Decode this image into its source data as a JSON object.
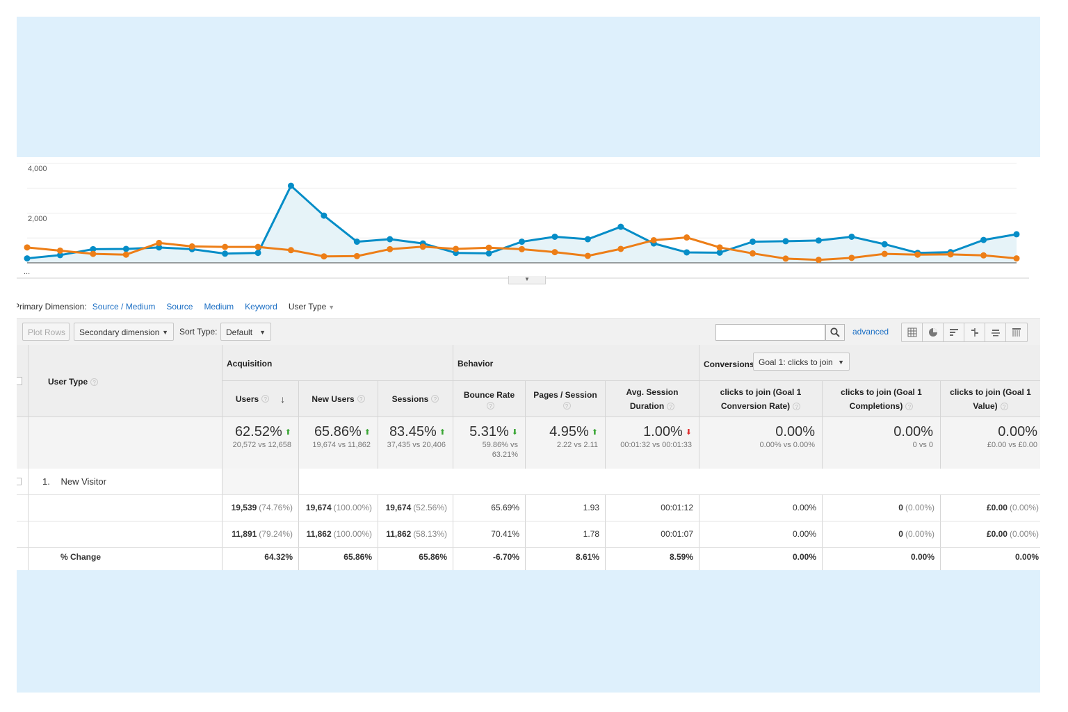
{
  "colors": {
    "series1": "#058dc7",
    "series2": "#ed7e17",
    "link": "#1a6ec4",
    "panel": "#def0fc",
    "up_arrow": "#3aa635",
    "down_arrow_bad": "#e03131"
  },
  "chart_data": {
    "type": "line",
    "y_ticks": [
      "4,000",
      "2,000"
    ],
    "ylim": [
      0,
      4000
    ],
    "x_tick_label": "...",
    "grid": true,
    "series": [
      {
        "color": "#058dc7",
        "values": [
          180,
          310,
          550,
          560,
          620,
          550,
          370,
          400,
          3100,
          1900,
          850,
          950,
          780,
          400,
          380,
          850,
          1050,
          950,
          1450,
          780,
          420,
          410,
          850,
          870,
          900,
          1050,
          750,
          400,
          430,
          920,
          1150
        ]
      },
      {
        "color": "#ed7e17",
        "values": [
          620,
          490,
          360,
          330,
          800,
          660,
          640,
          640,
          510,
          260,
          270,
          550,
          650,
          560,
          610,
          550,
          430,
          280,
          560,
          910,
          1020,
          620,
          380,
          170,
          120,
          200,
          360,
          330,
          340,
          300,
          180
        ]
      }
    ]
  },
  "primary_dimension": {
    "label": "Primary Dimension:",
    "options": [
      "Source / Medium",
      "Source",
      "Medium",
      "Keyword",
      "User Type"
    ],
    "selected": "User Type"
  },
  "toolbar": {
    "plot_rows": "Plot Rows",
    "secondary_dimension": "Secondary dimension",
    "sort_type_label": "Sort Type:",
    "sort_type_value": "Default",
    "search_placeholder": "",
    "advanced": "advanced",
    "view_icons": [
      "table-view-icon",
      "pie-view-icon",
      "performance-view-icon",
      "comparison-view-icon",
      "term-cloud-view-icon",
      "pivot-view-icon"
    ]
  },
  "table": {
    "dimension_header": "User Type",
    "groups": {
      "acquisition": "Acquisition",
      "behavior": "Behavior",
      "conversions": "Conversions",
      "goal_select": "Goal 1: clicks to join"
    },
    "columns": [
      {
        "l1": "Users",
        "l2": ""
      },
      {
        "l1": "New Users",
        "l2": ""
      },
      {
        "l1": "Sessions",
        "l2": ""
      },
      {
        "l1": "Bounce Rate",
        "l2": ""
      },
      {
        "l1": "Pages / Session",
        "l2": ""
      },
      {
        "l1": "Avg. Session",
        "l2": "Duration"
      },
      {
        "l1": "clicks to join (Goal 1",
        "l2": "Conversion Rate)"
      },
      {
        "l1": "clicks to join (Goal 1",
        "l2": "Completions)"
      },
      {
        "l1": "clicks to join (Goal 1",
        "l2": "Value)"
      }
    ],
    "totals": [
      {
        "big": "62.52%",
        "sub1": "20,572 vs 12,658",
        "sub2": "",
        "arrow": "up"
      },
      {
        "big": "65.86%",
        "sub1": "19,674 vs 11,862",
        "sub2": "",
        "arrow": "up"
      },
      {
        "big": "83.45%",
        "sub1": "37,435 vs 20,406",
        "sub2": "",
        "arrow": "up"
      },
      {
        "big": "5.31%",
        "sub1": "59.86% vs",
        "sub2": "63.21%",
        "arrow": "down"
      },
      {
        "big": "4.95%",
        "sub1": "2.22 vs 2.11",
        "sub2": "",
        "arrow": "up"
      },
      {
        "big": "1.00%",
        "sub1": "00:01:32 vs 00:01:33",
        "sub2": "",
        "arrow": "red"
      },
      {
        "big": "0.00%",
        "sub1": "0.00% vs 0.00%",
        "sub2": "",
        "arrow": ""
      },
      {
        "big": "0.00%",
        "sub1": "0 vs 0",
        "sub2": "",
        "arrow": ""
      },
      {
        "big": "0.00%",
        "sub1": "£0.00 vs £0.00",
        "sub2": "",
        "arrow": ""
      }
    ],
    "row": {
      "index": "1.",
      "label": "New Visitor"
    },
    "range_rows": [
      [
        {
          "v": "19,539",
          "p": "(74.76%)"
        },
        {
          "v": "19,674",
          "p": "(100.00%)"
        },
        {
          "v": "19,674",
          "p": "(52.56%)"
        },
        {
          "v": "65.69%",
          "p": ""
        },
        {
          "v": "1.93",
          "p": ""
        },
        {
          "v": "00:01:12",
          "p": ""
        },
        {
          "v": "0.00%",
          "p": ""
        },
        {
          "v": "0",
          "p": "(0.00%)"
        },
        {
          "v": "£0.00",
          "p": "(0.00%)"
        }
      ],
      [
        {
          "v": "11,891",
          "p": "(79.24%)"
        },
        {
          "v": "11,862",
          "p": "(100.00%)"
        },
        {
          "v": "11,862",
          "p": "(58.13%)"
        },
        {
          "v": "70.41%",
          "p": ""
        },
        {
          "v": "1.78",
          "p": ""
        },
        {
          "v": "00:01:07",
          "p": ""
        },
        {
          "v": "0.00%",
          "p": ""
        },
        {
          "v": "0",
          "p": "(0.00%)"
        },
        {
          "v": "£0.00",
          "p": "(0.00%)"
        }
      ]
    ],
    "change_label": "% Change",
    "change_row": [
      "64.32%",
      "65.86%",
      "65.86%",
      "-6.70%",
      "8.61%",
      "8.59%",
      "0.00%",
      "0.00%",
      "0.00%"
    ]
  }
}
